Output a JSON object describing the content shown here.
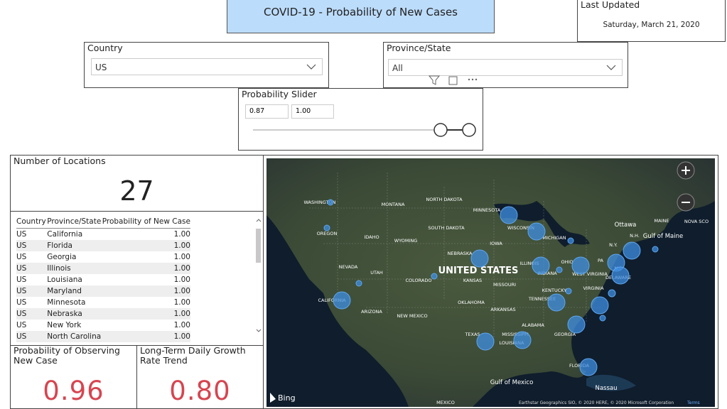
{
  "header": {
    "title": "COVID-19 - Probability of New Cases"
  },
  "last_updated": {
    "label": "Last Updated",
    "date": "Saturday, March 21, 2020"
  },
  "country_slicer": {
    "label": "Country",
    "selected": "US"
  },
  "province_slicer": {
    "label": "Province/State",
    "selected": "All"
  },
  "probability_slider": {
    "label": "Probability Slider",
    "min": "0.87",
    "max": "1.00"
  },
  "locations_card": {
    "label": "Number of Locations",
    "value": "27"
  },
  "table": {
    "columns": [
      "Country",
      "Province/State",
      "Probability of New Case"
    ],
    "rows": [
      [
        "US",
        "California",
        "1.00"
      ],
      [
        "US",
        "Florida",
        "1.00"
      ],
      [
        "US",
        "Georgia",
        "1.00"
      ],
      [
        "US",
        "Illinois",
        "1.00"
      ],
      [
        "US",
        "Louisiana",
        "1.00"
      ],
      [
        "US",
        "Maryland",
        "1.00"
      ],
      [
        "US",
        "Minnesota",
        "1.00"
      ],
      [
        "US",
        "Nebraska",
        "1.00"
      ],
      [
        "US",
        "New York",
        "1.00"
      ],
      [
        "US",
        "North Carolina",
        "1.00"
      ]
    ]
  },
  "kpi_observing": {
    "label": "Probability of Observing New Case",
    "value": "0.96"
  },
  "kpi_growth": {
    "label": "Long-Term Daily Growth Rate Trend",
    "value": "0.80"
  },
  "map": {
    "labels": [
      "WASHINGTON",
      "OREGON",
      "IDAHO",
      "MONTANA",
      "WYOMING",
      "NEVADA",
      "UTAH",
      "COLORADO",
      "CALIFORNIA",
      "ARIZONA",
      "NEW MEXICO",
      "NORTH DAKOTA",
      "SOUTH DAKOTA",
      "NEBRASKA",
      "KANSAS",
      "OKLAHOMA",
      "TEXAS",
      "MINNESOTA",
      "IOWA",
      "MISSOURI",
      "ARKANSAS",
      "LOUISIANA",
      "MISSISSIPPI",
      "WISCONSIN",
      "ILLINOIS",
      "MICHIGAN",
      "INDIANA",
      "OHIO",
      "KENTUCKY",
      "TENNESSEE",
      "ALABAMA",
      "GEORGIA",
      "FLORIDA",
      "WEST VIRGINIA",
      "VIRGINIA",
      "PA",
      "N.Y.",
      "N.J.",
      "DELAWARE",
      "N.H.",
      "MAINE",
      "NOVA SCO",
      "Gulf of Maine",
      "Ottawa",
      "Nassau",
      "MEXICO",
      "Gulf of Mexico"
    ],
    "country_label": "UNITED STATES",
    "brand": "Bing",
    "attribution": "Earthstar Geographics SIO, © 2020 HERE, © 2020 Microsoft Corporation",
    "terms": "Terms"
  }
}
